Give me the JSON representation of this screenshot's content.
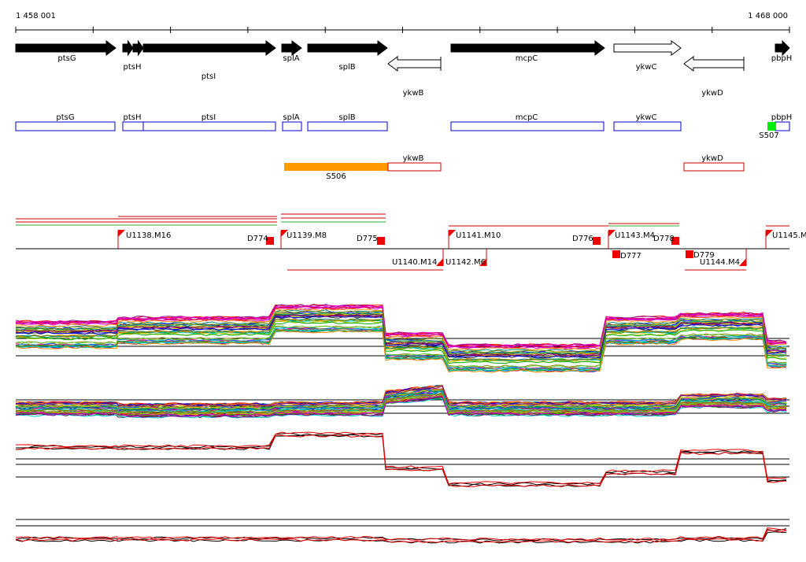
{
  "ruler": {
    "start": "1 458 001",
    "end": "1 468 000"
  },
  "gene_arrows": [
    "ptsG",
    "ptsH",
    "ptsI",
    "splA",
    "splB",
    "ykwB",
    "mcpC",
    "ykwC",
    "ykwD",
    "pbpH"
  ],
  "gene_boxes": [
    "ptsG",
    "ptsH",
    "ptsI",
    "splA",
    "splB",
    "mcpC",
    "ykwC",
    "pbpH"
  ],
  "gene_box_marker": "S507",
  "segment_track": {
    "segment": "S506",
    "boxes": [
      "ykwB",
      "ykwD"
    ]
  },
  "transcription_units": [
    "U1138.M16",
    "U1139.M8",
    "U1141.M10",
    "U1143.M4",
    "U1145.M",
    "U1140.M14",
    "U1142.M6",
    "U1144.M4"
  ],
  "terminators": [
    "D774",
    "D775",
    "D776",
    "D777",
    "D778",
    "D779"
  ]
}
